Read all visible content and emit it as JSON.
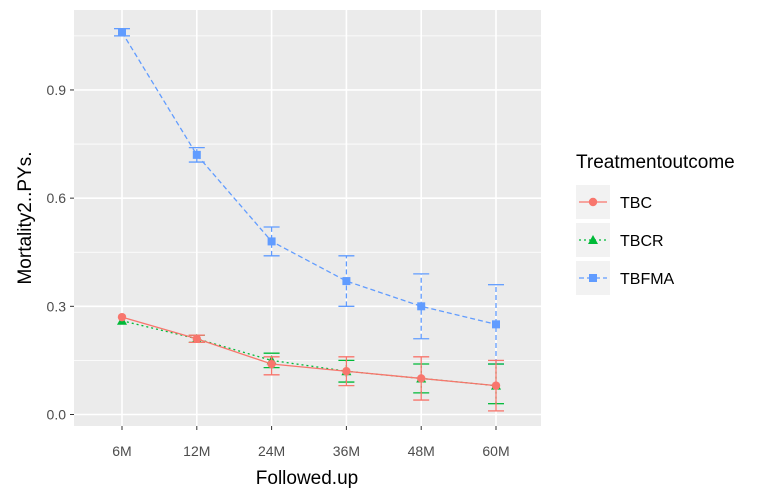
{
  "chart_data": {
    "type": "line",
    "xlabel": "Followed.up",
    "ylabel": "Mortality2..PYs.",
    "categories": [
      "6M",
      "12M",
      "24M",
      "36M",
      "48M",
      "60M"
    ],
    "ylim": [
      -0.03,
      1.085
    ],
    "yticks": [
      0.0,
      0.3,
      0.6,
      0.9
    ],
    "ytick_labels": [
      "0.0",
      "0.3",
      "0.6",
      "0.9"
    ],
    "grid": true,
    "legend": {
      "title": "Treatmentoutcome",
      "position": "right"
    },
    "series": [
      {
        "name": "TBC",
        "color": "#F8766D",
        "line_style": "solid",
        "marker": "circle",
        "values": [
          0.27,
          0.21,
          0.14,
          0.12,
          0.1,
          0.08
        ],
        "error_low": [
          0.27,
          0.2,
          0.11,
          0.08,
          0.04,
          0.01
        ],
        "error_high": [
          0.27,
          0.22,
          0.16,
          0.16,
          0.16,
          0.15
        ]
      },
      {
        "name": "TBCR",
        "color": "#00BA38",
        "line_style": "dotted",
        "marker": "triangle",
        "values": [
          0.26,
          0.21,
          0.15,
          0.12,
          0.1,
          0.08
        ],
        "error_low": [
          0.26,
          0.2,
          0.13,
          0.09,
          0.06,
          0.03
        ],
        "error_high": [
          0.26,
          0.22,
          0.17,
          0.15,
          0.14,
          0.14
        ]
      },
      {
        "name": "TBFMA",
        "color": "#619CFF",
        "line_style": "dashed",
        "marker": "square",
        "values": [
          1.06,
          0.72,
          0.48,
          0.37,
          0.3,
          0.25
        ],
        "error_low": [
          1.05,
          0.7,
          0.44,
          0.3,
          0.21,
          0.14
        ],
        "error_high": [
          1.07,
          0.74,
          0.52,
          0.44,
          0.39,
          0.36
        ]
      }
    ]
  }
}
